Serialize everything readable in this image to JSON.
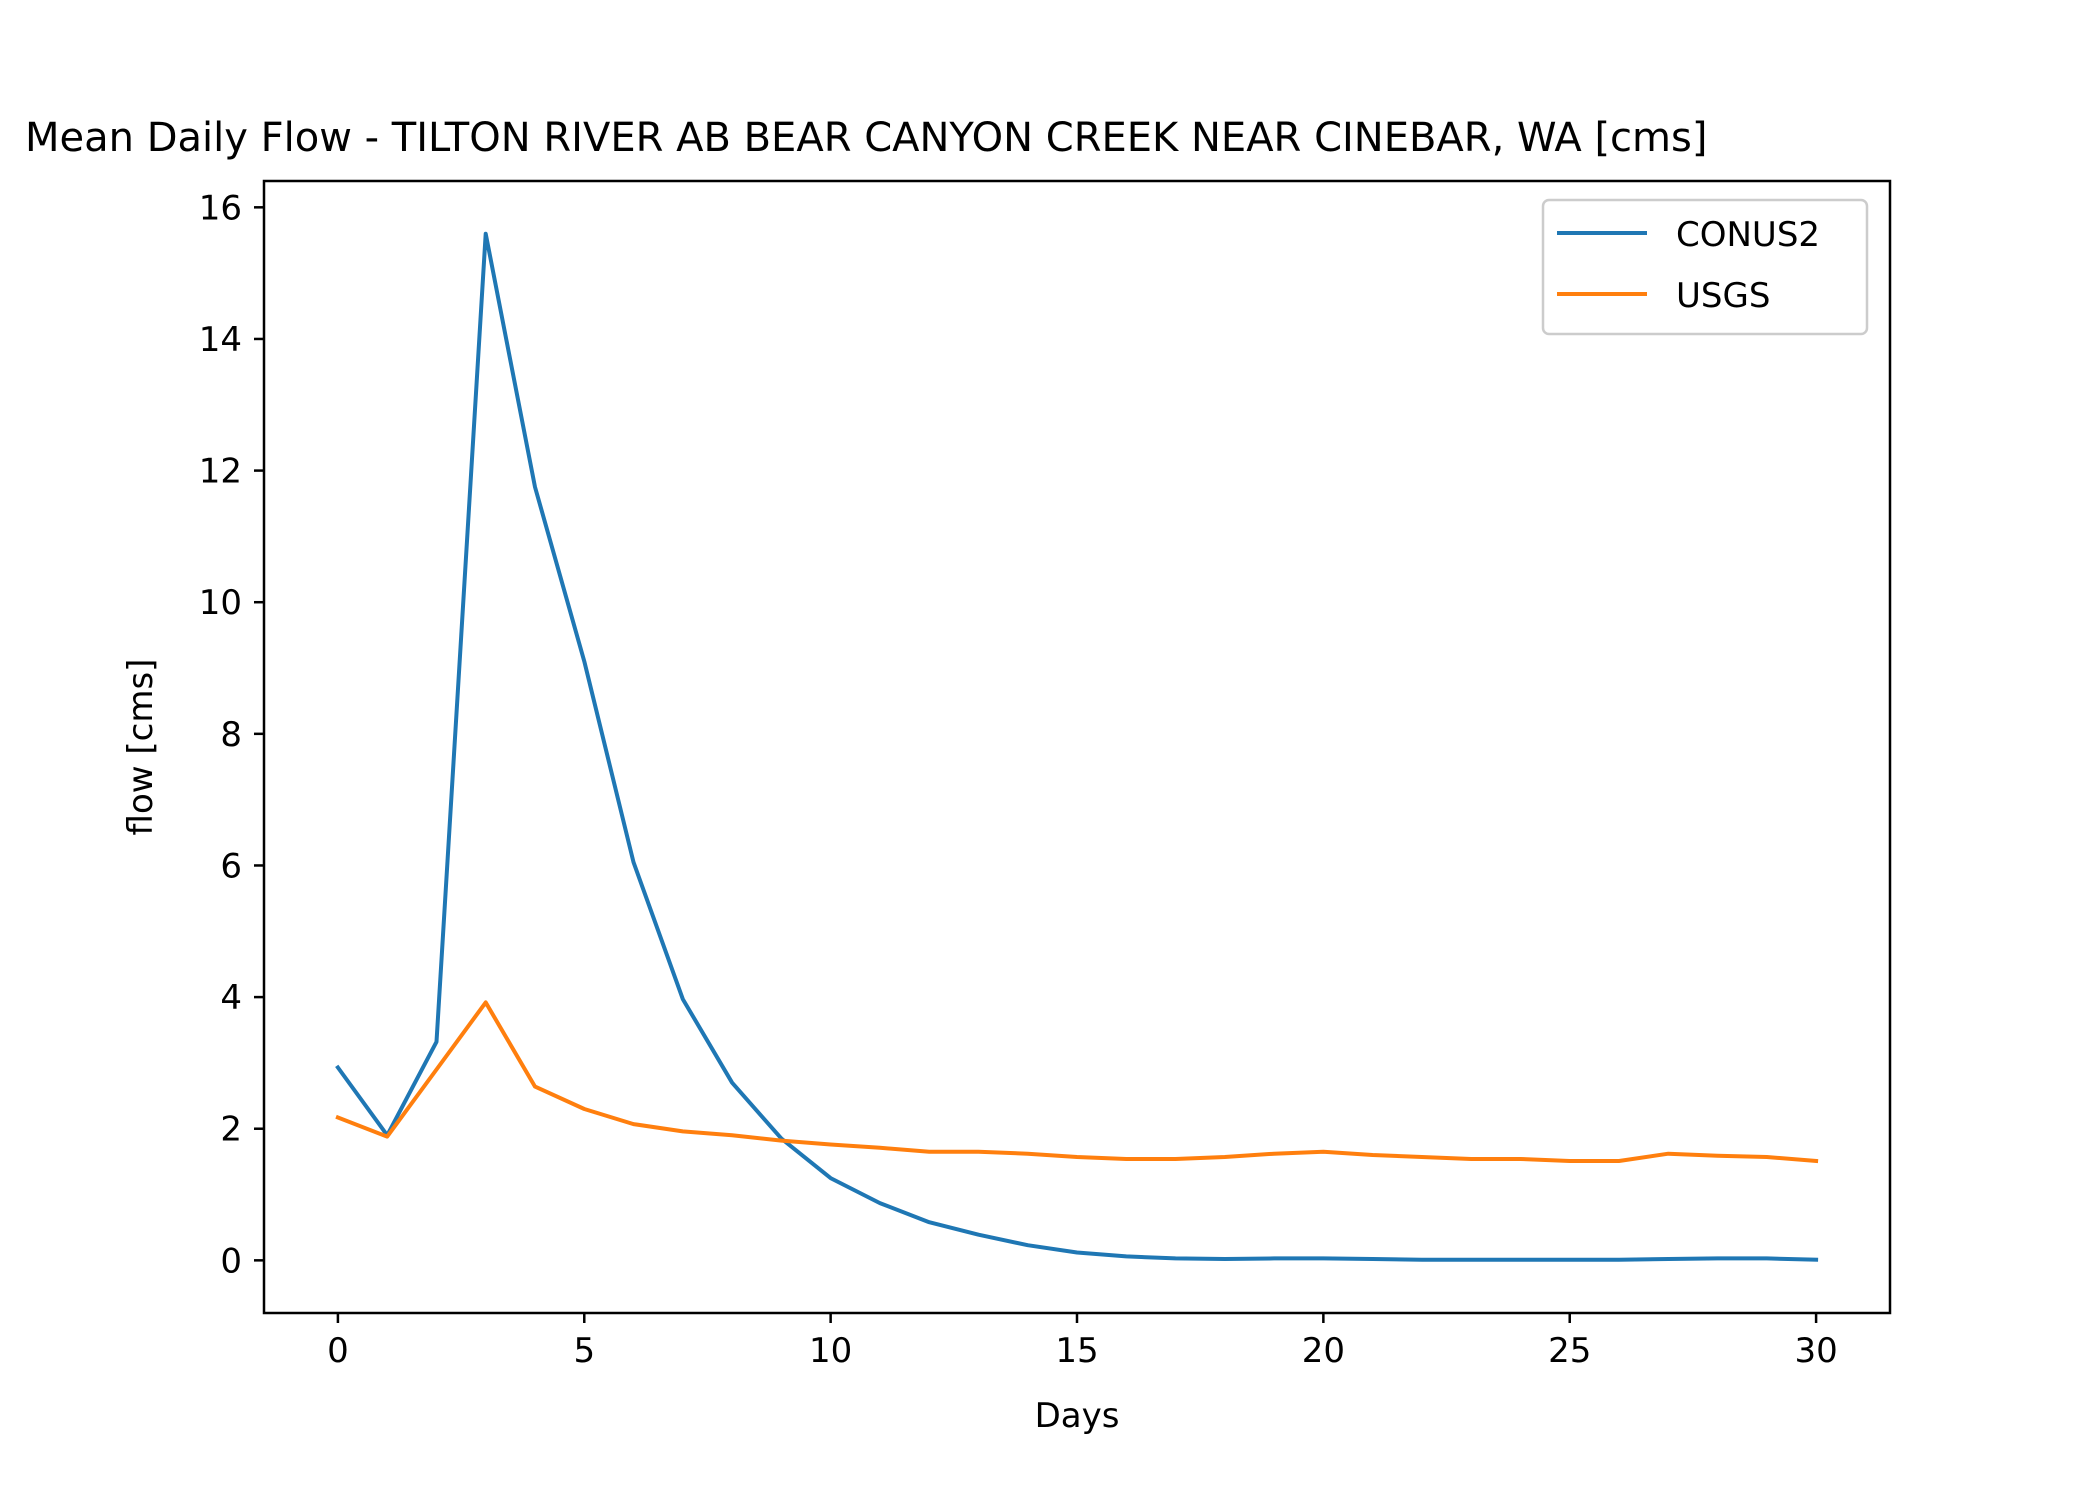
{
  "chart_data": {
    "type": "line",
    "title": "Mean Daily Flow - TILTON RIVER AB BEAR CANYON CREEK NEAR CINEBAR, WA [cms]",
    "xlabel": "Days",
    "ylabel": "flow [cms]",
    "xlim": [
      -1.5,
      31.5
    ],
    "ylim": [
      -0.8,
      16.4
    ],
    "x_ticks": [
      0,
      5,
      10,
      15,
      20,
      25,
      30
    ],
    "y_ticks": [
      0,
      2,
      4,
      6,
      8,
      10,
      12,
      14,
      16
    ],
    "x": [
      0,
      1,
      2,
      3,
      4,
      5,
      6,
      7,
      8,
      9,
      10,
      11,
      12,
      13,
      14,
      15,
      16,
      17,
      18,
      19,
      20,
      21,
      22,
      23,
      24,
      25,
      26,
      27,
      28,
      29,
      30
    ],
    "series": [
      {
        "name": "CONUS2",
        "color": "#1f77b4",
        "values": [
          2.93,
          1.9,
          3.32,
          15.6,
          11.75,
          9.1,
          6.05,
          3.97,
          2.7,
          1.85,
          1.25,
          0.87,
          0.58,
          0.39,
          0.23,
          0.12,
          0.06,
          0.03,
          0.02,
          0.03,
          0.03,
          0.02,
          0.01,
          0.01,
          0.01,
          0.01,
          0.01,
          0.02,
          0.03,
          0.03,
          0.01
        ]
      },
      {
        "name": "USGS",
        "color": "#ff7f0e",
        "values": [
          2.17,
          1.88,
          2.9,
          3.92,
          2.64,
          2.3,
          2.07,
          1.96,
          1.9,
          1.82,
          1.76,
          1.71,
          1.65,
          1.65,
          1.62,
          1.57,
          1.54,
          1.54,
          1.57,
          1.62,
          1.65,
          1.6,
          1.57,
          1.54,
          1.54,
          1.51,
          1.51,
          1.62,
          1.59,
          1.57,
          1.51
        ]
      }
    ],
    "legend": {
      "position": "top-right"
    },
    "grid": false
  }
}
